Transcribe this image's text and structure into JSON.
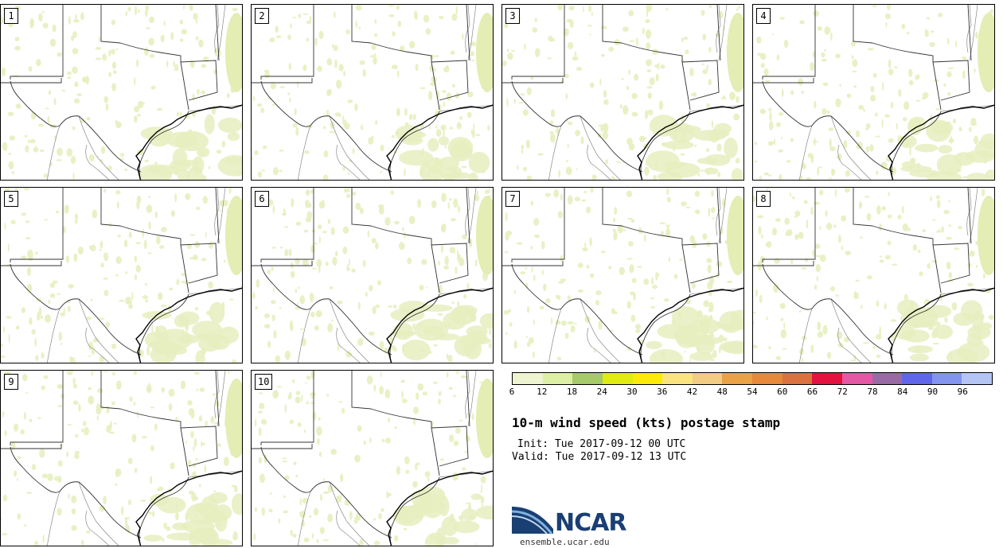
{
  "panels": [
    {
      "label": "1"
    },
    {
      "label": "2"
    },
    {
      "label": "3"
    },
    {
      "label": "4"
    },
    {
      "label": "5"
    },
    {
      "label": "6"
    },
    {
      "label": "7"
    },
    {
      "label": "8"
    },
    {
      "label": "9"
    },
    {
      "label": "10"
    }
  ],
  "colorbar": {
    "colors": [
      "#eef3d0",
      "#dcefa4",
      "#a6c96a",
      "#e1ea12",
      "#fbea0a",
      "#f9e47f",
      "#f1cc82",
      "#eaa246",
      "#e6893a",
      "#d9723e",
      "#e3123f",
      "#e458a4",
      "#9a6aa4",
      "#6066ea",
      "#8294ee",
      "#b5c5f3"
    ],
    "ticks": [
      "6",
      "12",
      "18",
      "24",
      "30",
      "36",
      "42",
      "48",
      "54",
      "60",
      "66",
      "72",
      "78",
      "84",
      "90",
      "96"
    ]
  },
  "title": "10-m wind speed (kts) postage stamp",
  "init_line": "Init: Tue 2017-09-12 00 UTC",
  "valid_line": "Valid: Tue 2017-09-12 13 UTC",
  "logo": {
    "text": "NCAR",
    "site": "ensemble.ucar.edu"
  }
}
